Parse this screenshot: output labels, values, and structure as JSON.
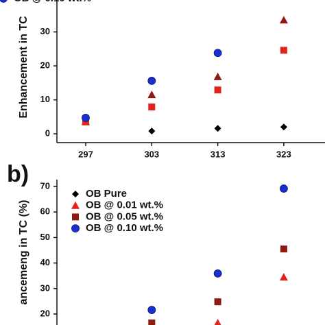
{
  "chart_data": [
    {
      "type": "scatter",
      "y_label": "Enhancement in TC",
      "categories": [
        "297",
        "303",
        "313",
        "323"
      ],
      "ylim": [
        -2.6,
        39.4
      ],
      "yticks": [
        0,
        10,
        20,
        30
      ],
      "legend_series": [
        3
      ],
      "series": [
        {
          "name": "OB Pure",
          "color": "#000000",
          "marker": "diamond",
          "values": [
            null,
            0.8,
            1.6,
            2.0
          ]
        },
        {
          "name": "OB @ 0.01 wt.%",
          "color": "#8e1b12",
          "marker": "triangle",
          "values": [
            3.6,
            11.5,
            16.8,
            33.5
          ]
        },
        {
          "name": "OB @ 0.05 wt.%",
          "color": "#e2231a",
          "marker": "square",
          "values": [
            3.5,
            7.9,
            12.9,
            24.6
          ]
        },
        {
          "name": "OB @ 0.10 wt.%",
          "color": "#1a2fd0",
          "marker": "circle",
          "values": [
            4.7,
            15.6,
            23.8,
            null
          ]
        }
      ]
    },
    {
      "type": "scatter",
      "panel_label": "b)",
      "y_label": "ancemeng in TC (%)",
      "categories": [
        null,
        null,
        null,
        null
      ],
      "ylim": [
        15.7,
        72.7
      ],
      "yticks": [
        20,
        30,
        40,
        50,
        60,
        70
      ],
      "legend_series": [
        0,
        1,
        2,
        3
      ],
      "series": [
        {
          "name": "OB Pure",
          "color": "#000000",
          "marker": "diamond",
          "values": [
            null,
            null,
            null,
            null
          ]
        },
        {
          "name": "OB @ 0.01 wt.%",
          "color": "#e2231a",
          "marker": "triangle",
          "values": [
            null,
            null,
            16.5,
            34.5
          ]
        },
        {
          "name": "OB @ 0.05 wt.%",
          "color": "#8e1b12",
          "marker": "square",
          "values": [
            null,
            16.5,
            24.8,
            45.5
          ]
        },
        {
          "name": "OB @ 0.10 wt.%",
          "color": "#1a2fd0",
          "marker": "circle",
          "values": [
            null,
            21.6,
            35.9,
            69.2
          ]
        }
      ]
    }
  ]
}
